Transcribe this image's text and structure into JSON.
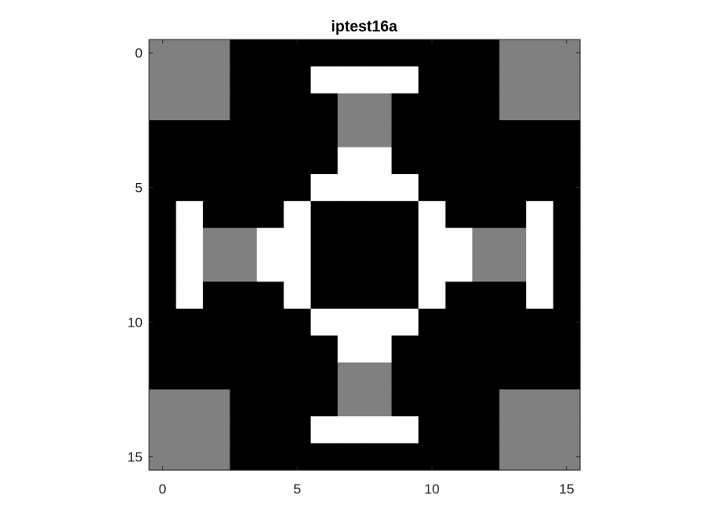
{
  "chart_data": {
    "type": "heatmap",
    "title": "iptest16a",
    "xlabel": "",
    "ylabel": "",
    "colormap": "gray",
    "value_colors": {
      "0": "#000000",
      "1": "#808080",
      "2": "#ffffff"
    },
    "xlim": [
      -0.5,
      15.5
    ],
    "ylim": [
      -0.5,
      15.5
    ],
    "y_reversed": true,
    "xticks": [
      0,
      5,
      10,
      15
    ],
    "yticks": [
      0,
      5,
      10,
      15
    ],
    "xtick_labels": [
      "0",
      "5",
      "10",
      "15"
    ],
    "ytick_labels": [
      "0",
      "5",
      "10",
      "15"
    ],
    "axis_color": "#262626",
    "grid": false,
    "values": [
      [
        1,
        1,
        1,
        0,
        0,
        0,
        0,
        0,
        0,
        0,
        0,
        0,
        0,
        1,
        1,
        1
      ],
      [
        1,
        1,
        1,
        0,
        0,
        0,
        2,
        2,
        2,
        2,
        0,
        0,
        0,
        1,
        1,
        1
      ],
      [
        1,
        1,
        1,
        0,
        0,
        0,
        0,
        1,
        1,
        0,
        0,
        0,
        0,
        1,
        1,
        1
      ],
      [
        0,
        0,
        0,
        0,
        0,
        0,
        0,
        1,
        1,
        0,
        0,
        0,
        0,
        0,
        0,
        0
      ],
      [
        0,
        0,
        0,
        0,
        0,
        0,
        0,
        2,
        2,
        0,
        0,
        0,
        0,
        0,
        0,
        0
      ],
      [
        0,
        0,
        0,
        0,
        0,
        0,
        2,
        2,
        2,
        2,
        0,
        0,
        0,
        0,
        0,
        0
      ],
      [
        0,
        2,
        0,
        0,
        0,
        2,
        0,
        0,
        0,
        0,
        2,
        0,
        0,
        0,
        2,
        0
      ],
      [
        0,
        2,
        1,
        1,
        2,
        2,
        0,
        0,
        0,
        0,
        2,
        2,
        1,
        1,
        2,
        0
      ],
      [
        0,
        2,
        1,
        1,
        2,
        2,
        0,
        0,
        0,
        0,
        2,
        2,
        1,
        1,
        2,
        0
      ],
      [
        0,
        2,
        0,
        0,
        0,
        2,
        0,
        0,
        0,
        0,
        2,
        0,
        0,
        0,
        2,
        0
      ],
      [
        0,
        0,
        0,
        0,
        0,
        0,
        2,
        2,
        2,
        2,
        0,
        0,
        0,
        0,
        0,
        0
      ],
      [
        0,
        0,
        0,
        0,
        0,
        0,
        0,
        2,
        2,
        0,
        0,
        0,
        0,
        0,
        0,
        0
      ],
      [
        0,
        0,
        0,
        0,
        0,
        0,
        0,
        1,
        1,
        0,
        0,
        0,
        0,
        0,
        0,
        0
      ],
      [
        1,
        1,
        1,
        0,
        0,
        0,
        0,
        1,
        1,
        0,
        0,
        0,
        0,
        1,
        1,
        1
      ],
      [
        1,
        1,
        1,
        0,
        0,
        0,
        2,
        2,
        2,
        2,
        0,
        0,
        0,
        1,
        1,
        1
      ],
      [
        1,
        1,
        1,
        0,
        0,
        0,
        0,
        0,
        0,
        0,
        0,
        0,
        0,
        1,
        1,
        1
      ]
    ]
  }
}
